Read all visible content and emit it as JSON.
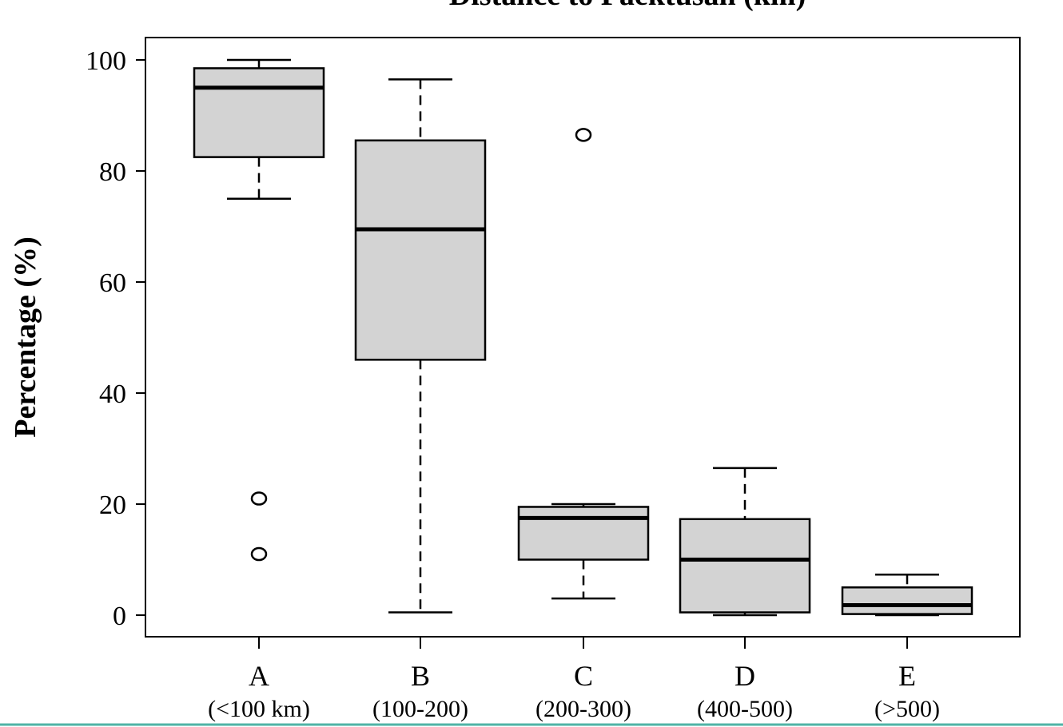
{
  "chart_data": {
    "type": "box",
    "title": "Distance to Paektusan (km)",
    "xlabel": "",
    "ylabel": "Percentage (%)",
    "ylim": [
      0,
      100
    ],
    "yticks": [
      0,
      20,
      40,
      60,
      80,
      100
    ],
    "grid": false,
    "legend": "none",
    "categories": [
      {
        "label": "A",
        "sublabel": "(<100 km)"
      },
      {
        "label": "B",
        "sublabel": "(100-200)"
      },
      {
        "label": "C",
        "sublabel": "(200-300)"
      },
      {
        "label": "D",
        "sublabel": "(400-500)"
      },
      {
        "label": "E",
        "sublabel": "(>500)"
      }
    ],
    "boxes": [
      {
        "category": "A",
        "whisker_low": 75,
        "q1": 82.5,
        "median": 95,
        "q3": 98.5,
        "whisker_high": 100,
        "outliers": [
          21,
          11
        ]
      },
      {
        "category": "B",
        "whisker_low": 0.5,
        "q1": 46,
        "median": 69.5,
        "q3": 85.5,
        "whisker_high": 96.5,
        "outliers": []
      },
      {
        "category": "C",
        "whisker_low": 3,
        "q1": 10,
        "median": 17.5,
        "q3": 19.5,
        "whisker_high": 20,
        "outliers": [
          86.5
        ]
      },
      {
        "category": "D",
        "whisker_low": 0,
        "q1": 0.5,
        "median": 10,
        "q3": 17.3,
        "whisker_high": 26.5,
        "outliers": []
      },
      {
        "category": "E",
        "whisker_low": 0,
        "q1": 0.2,
        "median": 1.8,
        "q3": 5,
        "whisker_high": 7.3,
        "outliers": []
      }
    ],
    "colors": {
      "box_fill": "#d3d3d3",
      "stroke": "#000000",
      "bottom_rule": "#4fb3a6"
    }
  }
}
